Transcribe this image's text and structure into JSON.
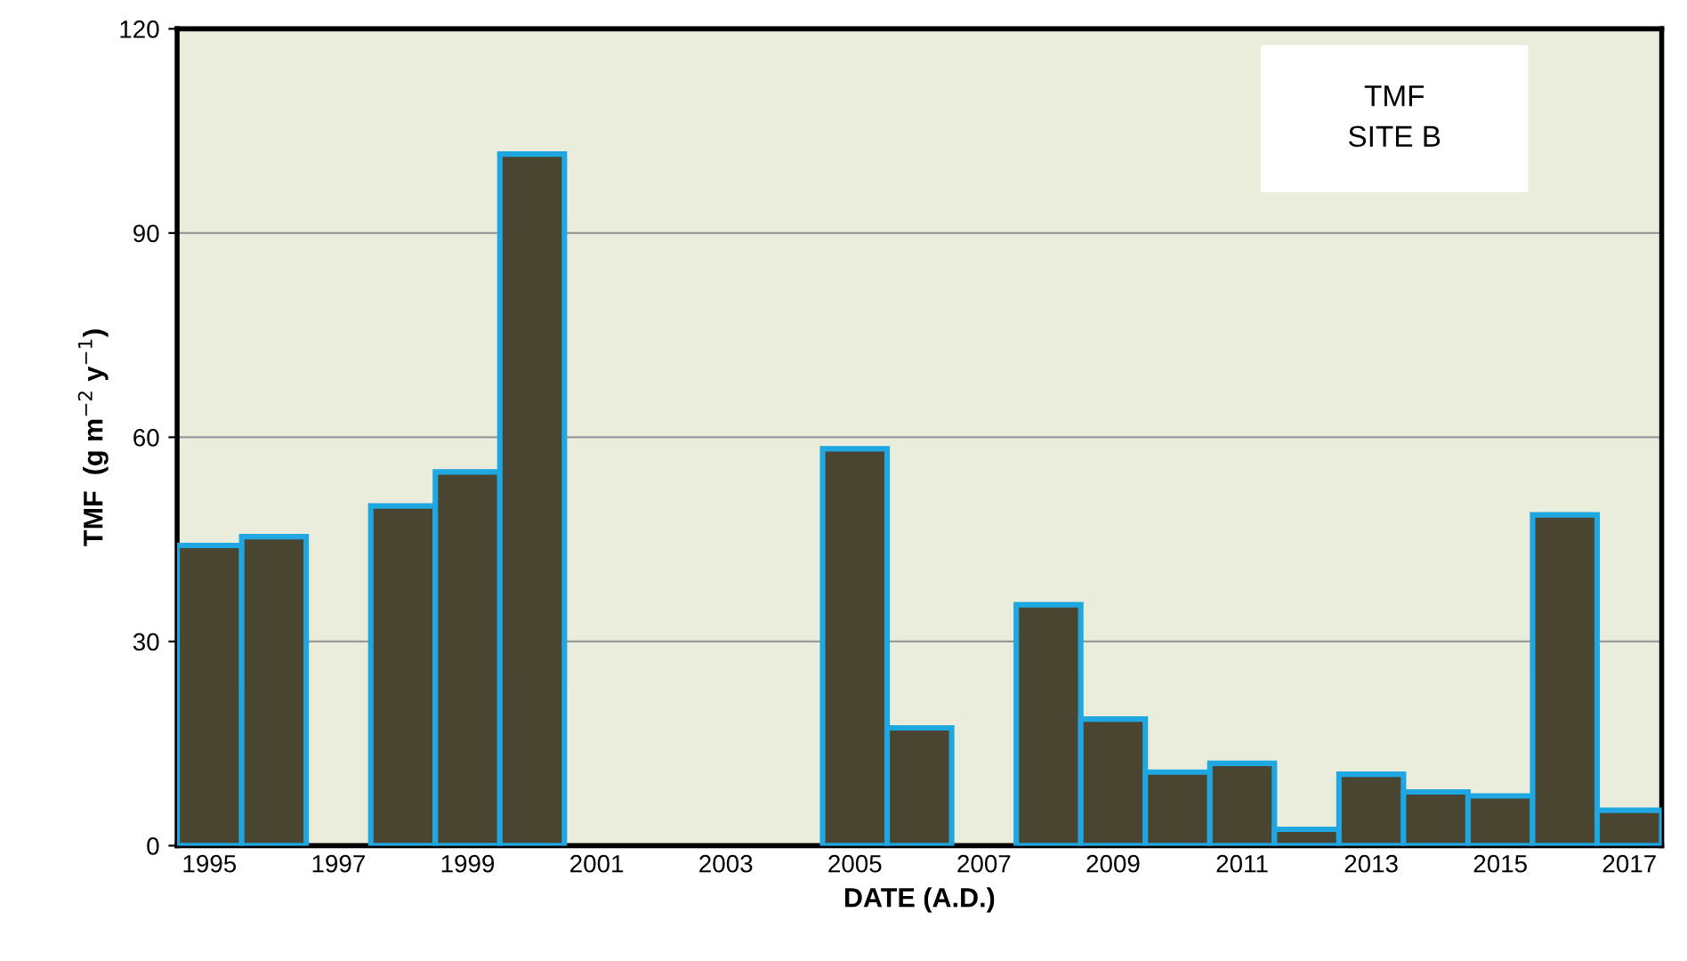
{
  "chart_data": {
    "type": "bar",
    "xlabel": "DATE (A.D.)",
    "ylabel": "TMF  (g m$^{−2}$ y$^{−1}$)",
    "categories": [
      "1995",
      null,
      "1997",
      null,
      "1999",
      null,
      "2001",
      null,
      "2003",
      null,
      "2005",
      null,
      "2007",
      null,
      "2009",
      null,
      "2011",
      null,
      "2013",
      null,
      "2015",
      null,
      "2017"
    ],
    "series": [
      {
        "color": "#4a4530",
        "values": [
          44.1,
          45.4,
          null,
          49.9,
          54.9,
          101.6,
          null,
          null,
          null,
          null,
          58.3,
          17.3,
          null,
          35.4,
          18.6,
          10.8,
          12.1,
          2.4,
          10.5,
          7.9,
          7.3,
          48.6,
          5.2
        ]
      }
    ],
    "ylim": [
      0,
      120
    ],
    "yticks": [
      0,
      30,
      60,
      90,
      120
    ],
    "grid": "y",
    "legend": false,
    "annotations": [
      "TMF\nSITE B"
    ]
  }
}
